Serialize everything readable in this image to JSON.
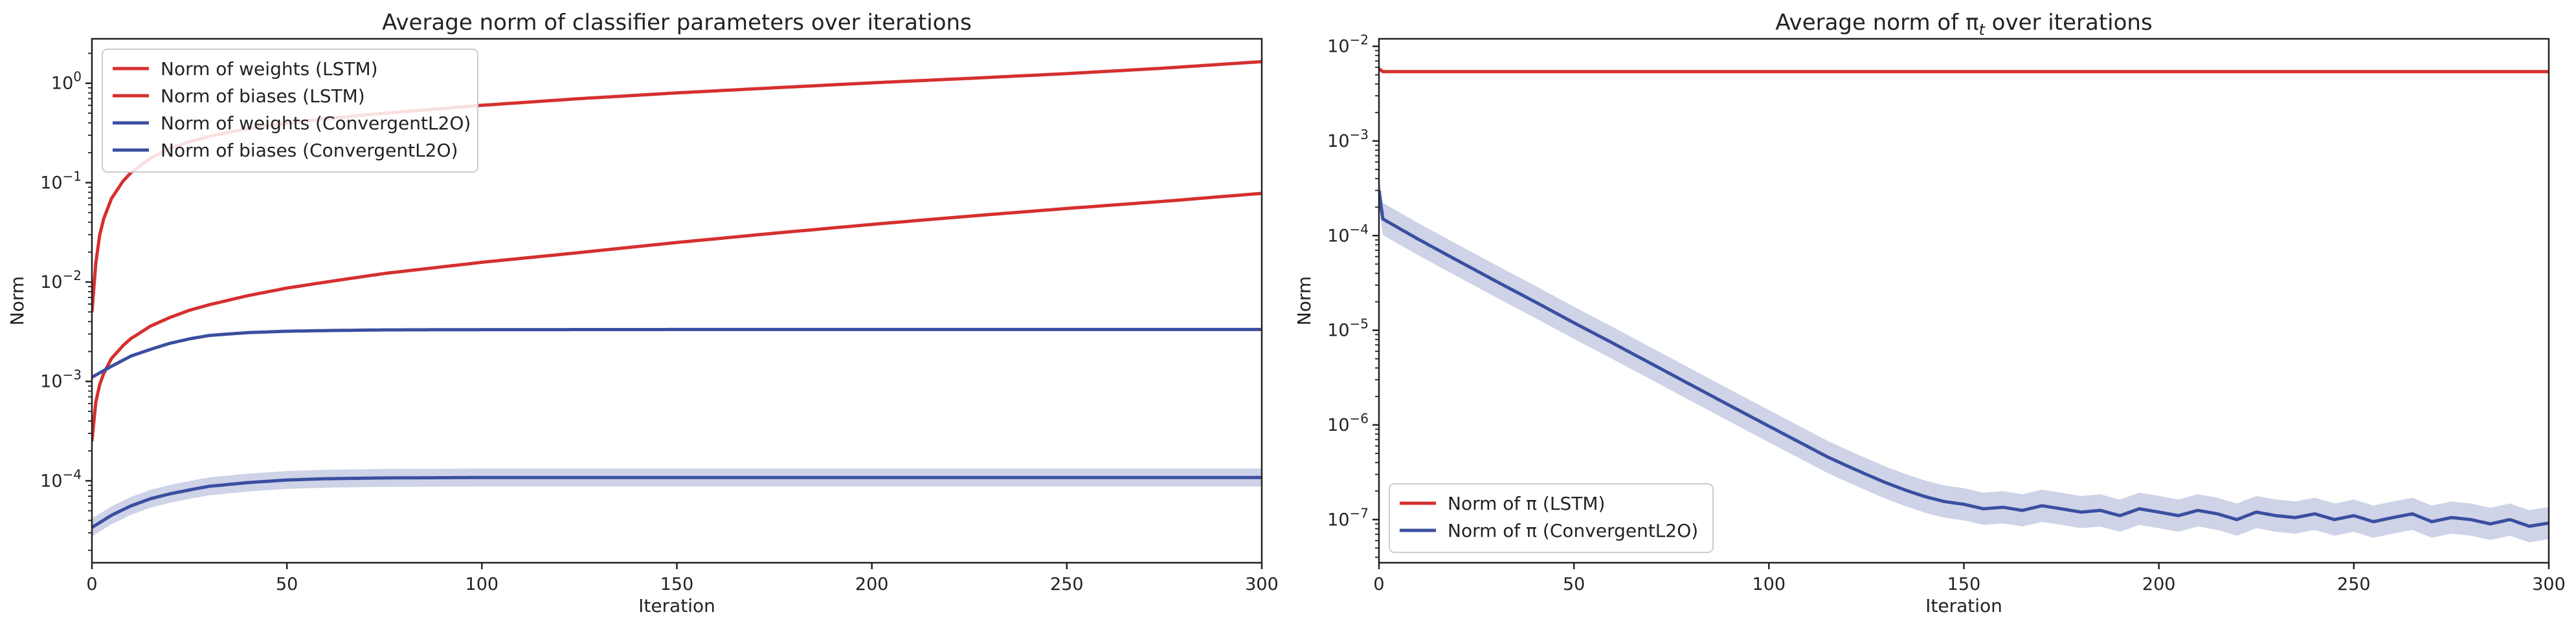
{
  "chart_data": [
    {
      "type": "line",
      "title": "Average norm of classifier parameters over iterations",
      "xlabel": "Iteration",
      "ylabel": "Norm",
      "xlim": [
        0,
        300
      ],
      "ylim": [
        1.5e-05,
        2.8
      ],
      "yscale": "log",
      "xticks": [
        0,
        50,
        100,
        150,
        200,
        250,
        300
      ],
      "yticks": [
        0.0001,
        0.001,
        0.01,
        0.1,
        1
      ],
      "ytick_labels": [
        [
          "10",
          "−4"
        ],
        [
          "10",
          "−3"
        ],
        [
          "10",
          "−2"
        ],
        [
          "10",
          "−1"
        ],
        [
          "10",
          "0"
        ]
      ],
      "grid": false,
      "legend_position": "upper left",
      "series": [
        {
          "name": "Norm of weights (LSTM)",
          "color": "#d62f2f",
          "x": [
            0,
            0.5,
            1,
            2,
            3,
            5,
            8,
            10,
            15,
            20,
            25,
            30,
            40,
            50,
            60,
            75,
            100,
            125,
            150,
            175,
            200,
            225,
            250,
            275,
            300
          ],
          "values": [
            0.005,
            0.01,
            0.0156,
            0.0297,
            0.0432,
            0.069,
            0.104,
            0.126,
            0.176,
            0.22,
            0.258,
            0.292,
            0.35,
            0.396,
            0.44,
            0.5,
            0.6,
            0.7,
            0.8,
            0.9,
            1.01,
            1.12,
            1.25,
            1.42,
            1.65
          ]
        },
        {
          "name": "Norm of biases (LSTM)",
          "color": "#d62f2f",
          "x": [
            0,
            1,
            2,
            3,
            5,
            8,
            10,
            15,
            20,
            25,
            30,
            40,
            50,
            60,
            75,
            100,
            125,
            150,
            175,
            200,
            225,
            250,
            275,
            300
          ],
          "values": [
            0.00025,
            0.00062,
            0.00093,
            0.0012,
            0.0017,
            0.0023,
            0.0027,
            0.0036,
            0.0044,
            0.0052,
            0.0059,
            0.0073,
            0.0087,
            0.01,
            0.0122,
            0.0158,
            0.0198,
            0.025,
            0.031,
            0.038,
            0.046,
            0.055,
            0.065,
            0.078
          ]
        },
        {
          "name": "Norm of weights (ConvergentL2O)",
          "color": "#3b4fa0",
          "x": [
            0,
            2,
            5,
            10,
            15,
            20,
            25,
            30,
            40,
            50,
            60,
            75,
            100,
            150,
            200,
            250,
            300
          ],
          "values": [
            0.0011,
            0.00122,
            0.00142,
            0.0018,
            0.0021,
            0.00242,
            0.00268,
            0.0029,
            0.0031,
            0.0032,
            0.00325,
            0.0033,
            0.00332,
            0.00333,
            0.00333,
            0.00333,
            0.00333
          ]
        },
        {
          "name": "Norm of biases (ConvergentL2O)",
          "color": "#3b4fa0",
          "band": true,
          "x": [
            0,
            2,
            5,
            10,
            15,
            20,
            25,
            30,
            40,
            50,
            60,
            75,
            100,
            150,
            200,
            250,
            300
          ],
          "values": [
            3.4e-05,
            3.8e-05,
            4.5e-05,
            5.6e-05,
            6.6e-05,
            7.4e-05,
            8.1e-05,
            8.8e-05,
            9.6e-05,
            0.000102,
            0.000105,
            0.000107,
            0.000108,
            0.000108,
            0.000108,
            0.000108,
            0.000108
          ]
        }
      ]
    },
    {
      "type": "line",
      "title": "Average norm of π",
      "title_subscript": "t",
      "title_suffix": " over iterations",
      "xlabel": "Iteration",
      "ylabel": "Norm",
      "xlim": [
        0,
        300
      ],
      "ylim": [
        3.5e-08,
        0.012
      ],
      "yscale": "log",
      "xticks": [
        0,
        50,
        100,
        150,
        200,
        250,
        300
      ],
      "yticks": [
        1e-07,
        1e-06,
        1e-05,
        0.0001,
        0.001,
        0.01
      ],
      "ytick_labels": [
        [
          "10",
          "−7"
        ],
        [
          "10",
          "−6"
        ],
        [
          "10",
          "−5"
        ],
        [
          "10",
          "−4"
        ],
        [
          "10",
          "−3"
        ],
        [
          "10",
          "−2"
        ]
      ],
      "grid": false,
      "legend_position": "lower left",
      "series": [
        {
          "name": "Norm of π (LSTM)",
          "color": "#d62f2f",
          "x": [
            0,
            0.5,
            1,
            300
          ],
          "values": [
            0.0058,
            0.0052,
            0.0054,
            0.0054
          ]
        },
        {
          "name": "Norm of π (ConvergentL2O)",
          "color": "#3b4fa0",
          "band": true,
          "x": [
            0,
            0.5,
            1,
            10,
            20,
            30,
            40,
            50,
            60,
            70,
            80,
            90,
            100,
            110,
            115,
            120,
            125,
            130,
            135,
            140,
            145,
            150,
            155,
            160,
            165,
            170,
            175,
            180,
            185,
            190,
            195,
            200,
            205,
            210,
            215,
            220,
            225,
            230,
            235,
            240,
            245,
            250,
            255,
            260,
            265,
            270,
            275,
            280,
            285,
            290,
            295,
            300
          ],
          "values": [
            0.0003,
            0.0002,
            0.00015,
            9.2e-05,
            5.5e-05,
            3.3e-05,
            2e-05,
            1.2e-05,
            7.3e-06,
            4.4e-06,
            2.65e-06,
            1.6e-06,
            9.7e-07,
            5.9e-07,
            4.6e-07,
            3.7e-07,
            3e-07,
            2.45e-07,
            2.05e-07,
            1.75e-07,
            1.55e-07,
            1.45e-07,
            1.3e-07,
            1.35e-07,
            1.25e-07,
            1.4e-07,
            1.3e-07,
            1.2e-07,
            1.25e-07,
            1.1e-07,
            1.3e-07,
            1.2e-07,
            1.1e-07,
            1.25e-07,
            1.15e-07,
            1e-07,
            1.2e-07,
            1.1e-07,
            1.05e-07,
            1.15e-07,
            1e-07,
            1.1e-07,
            9.5e-08,
            1.05e-07,
            1.15e-07,
            9.5e-08,
            1.05e-07,
            1e-07,
            9e-08,
            1e-07,
            8.5e-08,
            9.2e-08
          ]
        }
      ]
    }
  ]
}
